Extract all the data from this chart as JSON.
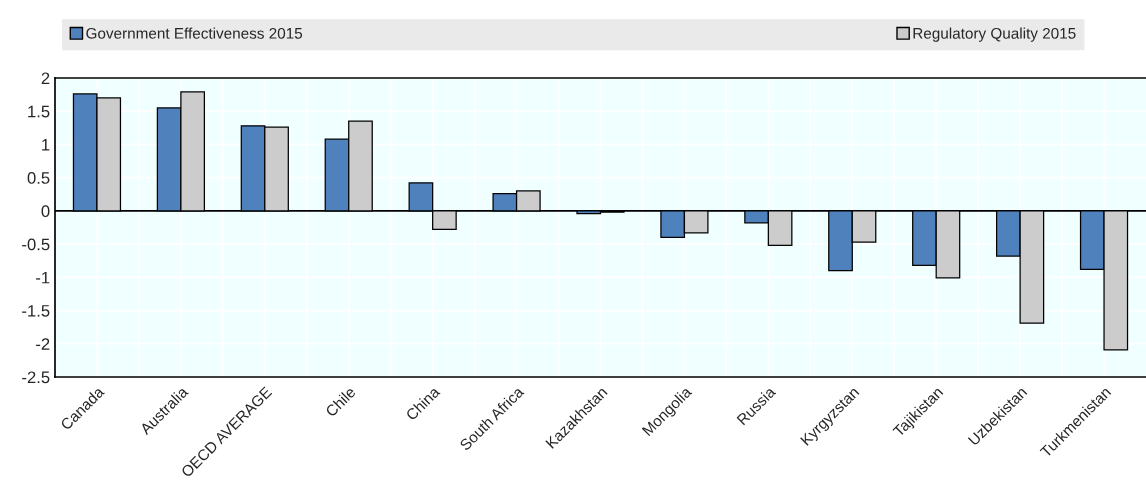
{
  "chart_data": {
    "type": "bar",
    "categories": [
      "Canada",
      "Australia",
      "OECD AVERAGE",
      "Chile",
      "China",
      "South Africa",
      "Kazakhstan",
      "Mongolia",
      "Russia",
      "Kyrgyzstan",
      "Tajikistan",
      "Uzbekistan",
      "Turkmenistan"
    ],
    "series": [
      {
        "name": "Government Effectiveness 2015",
        "color": "#4f81bd",
        "values": [
          1.76,
          1.55,
          1.28,
          1.08,
          0.42,
          0.26,
          -0.04,
          -0.4,
          -0.18,
          -0.9,
          -0.82,
          -0.68,
          -0.88
        ]
      },
      {
        "name": "Regulatory Quality 2015",
        "color": "#cccccc",
        "values": [
          1.7,
          1.79,
          1.26,
          1.35,
          -0.28,
          0.3,
          -0.02,
          -0.33,
          -0.52,
          -0.47,
          -1.01,
          -1.69,
          -2.09
        ]
      }
    ],
    "ylim": [
      -2.5,
      2
    ],
    "yticks": [
      {
        "value": -2.5,
        "label": "-2.5"
      },
      {
        "value": -2,
        "label": "-2"
      },
      {
        "value": -1.5,
        "label": "-1.5"
      },
      {
        "value": -1,
        "label": "-1"
      },
      {
        "value": -0.5,
        "label": "-0.5"
      },
      0,
      0.5,
      1,
      1.5,
      2
    ],
    "grid": true,
    "legend": "top"
  }
}
